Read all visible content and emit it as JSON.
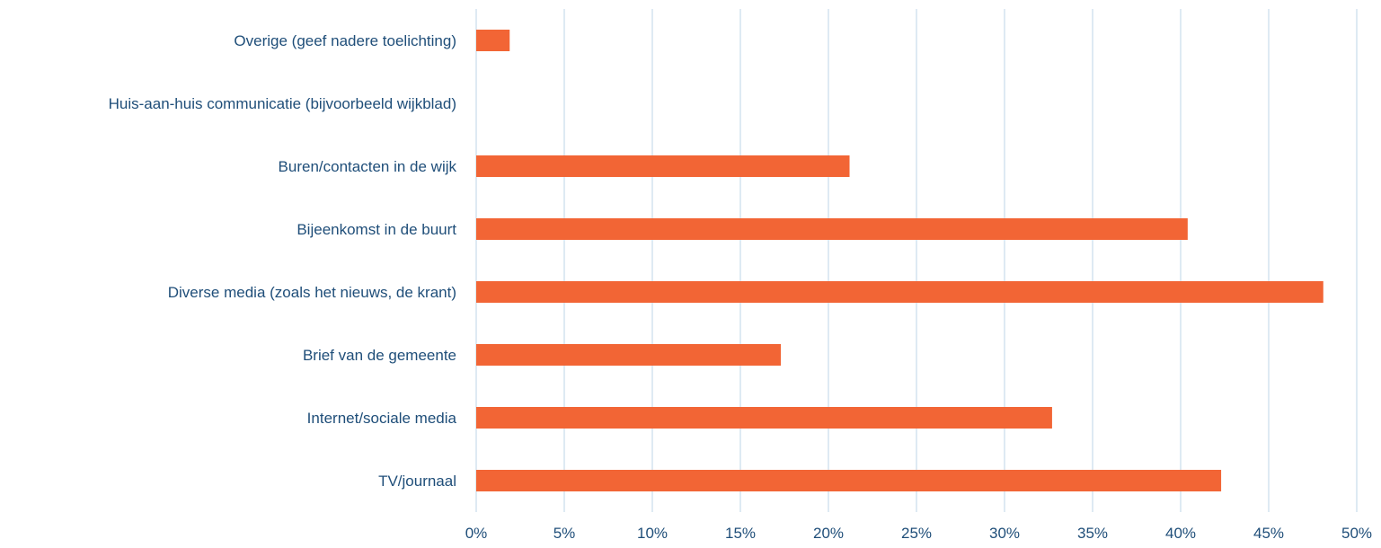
{
  "chart_data": {
    "type": "bar",
    "orientation": "horizontal",
    "title": "",
    "xlabel": "",
    "ylabel": "",
    "categories": [
      "Overige (geef nadere toelichting)",
      "Huis-aan-huis communicatie (bijvoorbeeld wijkblad)",
      "Buren/contacten in de wijk",
      "Bijeenkomst in de buurt",
      "Diverse media (zoals het nieuws, de krant)",
      "Brief van de gemeente",
      "Internet/sociale media",
      "TV/journaal"
    ],
    "values": [
      1.9,
      0,
      21.2,
      40.4,
      48.1,
      17.3,
      32.7,
      42.3
    ],
    "xlim": [
      0,
      50
    ],
    "x_ticks": [
      0,
      5,
      10,
      15,
      20,
      25,
      30,
      35,
      40,
      45,
      50
    ],
    "x_tick_labels": [
      "0%",
      "5%",
      "10%",
      "15%",
      "20%",
      "25%",
      "30%",
      "35%",
      "40%",
      "45%",
      "50%"
    ],
    "grid": true,
    "legend": "none",
    "colors": {
      "bar": "#F26535",
      "grid": "#C9DDEB",
      "label": "#1F4E79"
    }
  }
}
